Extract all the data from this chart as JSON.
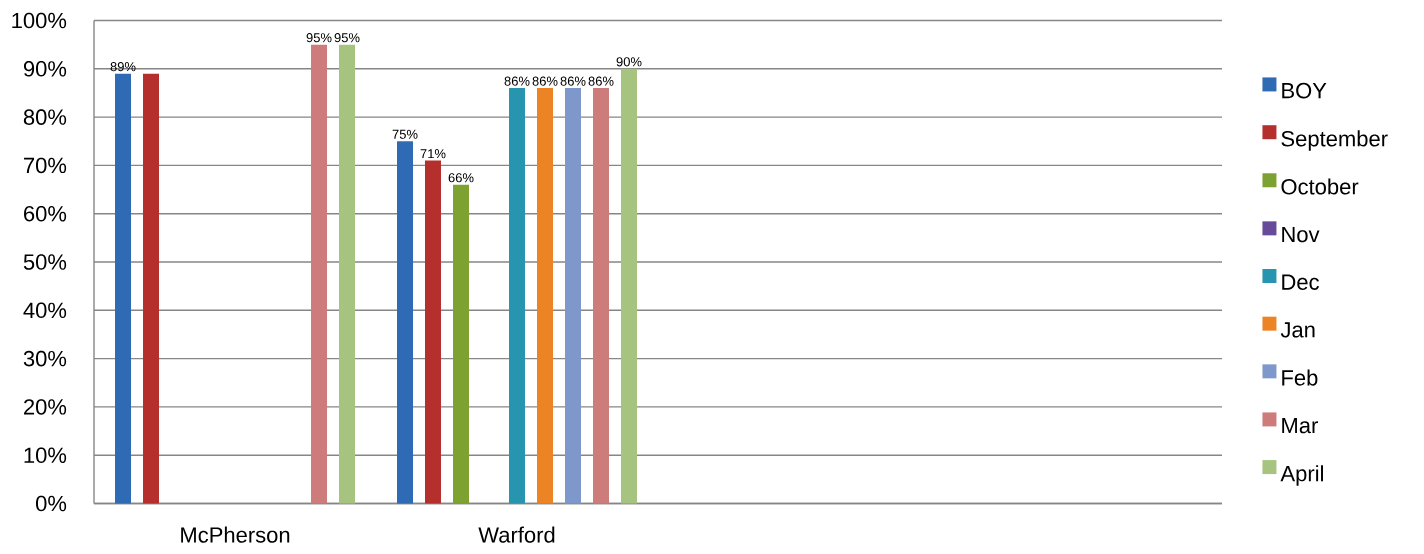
{
  "chart_data": {
    "type": "bar",
    "categories": [
      "McPherson",
      "Warford",
      null,
      null
    ],
    "series": [
      {
        "name": "BOY",
        "color": "#2e6bb4",
        "values": [
          89,
          75,
          null,
          null
        ],
        "value_labels": [
          "89%",
          "75%",
          null,
          null
        ]
      },
      {
        "name": "September",
        "color": "#b5302d",
        "values": [
          89,
          71,
          null,
          null
        ],
        "value_labels": [
          null,
          "71%",
          null,
          null
        ]
      },
      {
        "name": "October",
        "color": "#7ea232",
        "values": [
          null,
          66,
          null,
          null
        ],
        "value_labels": [
          null,
          "66%",
          null,
          null
        ]
      },
      {
        "name": "Nov",
        "color": "#674a9a",
        "values": [
          null,
          null,
          null,
          null
        ]
      },
      {
        "name": "Dec",
        "color": "#2895b0",
        "values": [
          null,
          86,
          null,
          null
        ],
        "value_labels": [
          null,
          "86%",
          null,
          null
        ]
      },
      {
        "name": "Jan",
        "color": "#ec8324",
        "values": [
          null,
          86,
          null,
          null
        ],
        "value_labels": [
          null,
          "86%",
          null,
          null
        ]
      },
      {
        "name": "Feb",
        "color": "#7f98cb",
        "values": [
          null,
          86,
          null,
          null
        ],
        "value_labels": [
          null,
          "86%",
          null,
          null
        ]
      },
      {
        "name": "Mar",
        "color": "#cd7c7b",
        "values": [
          95,
          86,
          null,
          null
        ],
        "value_labels": [
          "95%",
          "86%",
          null,
          null
        ]
      },
      {
        "name": "April",
        "color": "#a6c47f",
        "values": [
          95,
          90,
          null,
          null
        ],
        "value_labels": [
          "95%",
          "90%",
          null,
          null
        ]
      }
    ],
    "ylim": [
      0,
      100
    ],
    "yticks": [
      {
        "value": 0,
        "label": "0%"
      },
      {
        "value": 10,
        "label": "10%"
      },
      {
        "value": 20,
        "label": "20%"
      },
      {
        "value": 30,
        "label": "30%"
      },
      {
        "value": 40,
        "label": "40%"
      },
      {
        "value": 50,
        "label": "50%"
      },
      {
        "value": 60,
        "label": "60%"
      },
      {
        "value": 70,
        "label": "70%"
      },
      {
        "value": 80,
        "label": "80%"
      },
      {
        "value": 90,
        "label": "90%"
      },
      {
        "value": 100,
        "label": "100%"
      }
    ],
    "grid": "y",
    "legend": "right"
  }
}
